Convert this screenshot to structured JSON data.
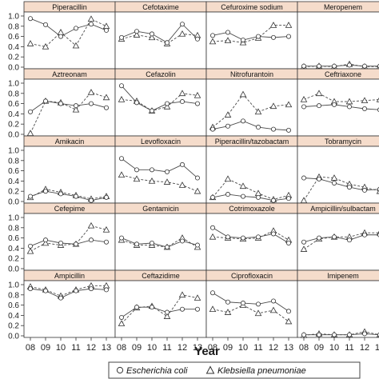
{
  "chart_data": {
    "type": "line",
    "x_tick_labels": [
      "08",
      "09",
      "10",
      "11",
      "12",
      "13"
    ],
    "xlabel": "Year",
    "ylabel": "",
    "ylim": [
      0,
      1.0
    ],
    "y_ticks": [
      "0.0",
      "0.2",
      "0.4",
      "0.6",
      "0.8",
      "1.0"
    ],
    "grid": false,
    "legend_position": "bottom",
    "legend": [
      {
        "name": "Escherichia coli",
        "marker": "circle",
        "line": "solid"
      },
      {
        "name": "Klebsiella pneumoniae",
        "marker": "triangle",
        "line": "dashed"
      }
    ],
    "colors": {
      "strip_bg": "#f5dccb",
      "line": "#4a4a4a",
      "border": "#333333"
    },
    "panels": [
      {
        "title": "Piperacillin",
        "ecoli": [
          0.95,
          0.83,
          0.6,
          0.76,
          0.84,
          0.72
        ],
        "kp": [
          0.46,
          0.4,
          0.68,
          0.42,
          0.94,
          0.8
        ]
      },
      {
        "title": "Cefotaxime",
        "ecoli": [
          0.58,
          0.7,
          0.65,
          0.48,
          0.84,
          0.55
        ],
        "kp": [
          0.55,
          0.63,
          0.58,
          0.46,
          0.65,
          0.62
        ]
      },
      {
        "title": "Cefuroxime sodium",
        "ecoli": [
          0.62,
          0.68,
          0.53,
          0.6,
          0.58,
          0.6
        ],
        "kp": [
          0.5,
          0.52,
          0.48,
          0.57,
          0.82,
          0.82
        ]
      },
      {
        "title": "Meropenem",
        "ecoli": [
          0.02,
          0.02,
          0.02,
          0.04,
          0.02,
          0.02
        ],
        "kp": [
          0.01,
          0.02,
          0.01,
          0.06,
          0.01,
          0.01
        ]
      },
      {
        "title": "Aztreonam",
        "ecoli": [
          0.44,
          0.65,
          0.6,
          0.56,
          0.6,
          0.52
        ],
        "kp": [
          0.02,
          0.65,
          0.62,
          0.48,
          0.82,
          0.72
        ]
      },
      {
        "title": "Cefazolin",
        "ecoli": [
          0.95,
          0.62,
          0.46,
          0.6,
          0.64,
          0.6
        ],
        "kp": [
          0.68,
          0.65,
          0.46,
          0.54,
          0.8,
          0.76
        ]
      },
      {
        "title": "Nitrofurantoin",
        "ecoli": [
          0.1,
          0.16,
          0.26,
          0.14,
          0.1,
          0.08
        ],
        "kp": [
          0.14,
          0.38,
          0.78,
          0.44,
          0.55,
          0.58
        ]
      },
      {
        "title": "Ceftriaxone",
        "ecoli": [
          0.54,
          0.56,
          0.58,
          0.54,
          0.5,
          0.48
        ],
        "kp": [
          0.68,
          0.8,
          0.64,
          0.64,
          0.66,
          0.68
        ]
      },
      {
        "title": "Amikacin",
        "ecoli": [
          0.1,
          0.2,
          0.15,
          0.1,
          0.02,
          0.08
        ],
        "kp": [
          0.08,
          0.24,
          0.18,
          0.12,
          0.05,
          0.1
        ]
      },
      {
        "title": "Levofloxacin",
        "ecoli": [
          0.84,
          0.62,
          0.62,
          0.58,
          0.72,
          0.46
        ],
        "kp": [
          0.52,
          0.44,
          0.4,
          0.38,
          0.32,
          0.2
        ]
      },
      {
        "title": "Piperacillin/tazobactam",
        "ecoli": [
          0.08,
          0.14,
          0.1,
          0.08,
          0.02,
          0.06
        ],
        "kp": [
          0.08,
          0.44,
          0.3,
          0.16,
          0.04,
          0.12
        ]
      },
      {
        "title": "Tobramycin",
        "ecoli": [
          0.46,
          0.44,
          0.36,
          0.28,
          0.22,
          0.24
        ],
        "kp": [
          0.02,
          0.48,
          0.46,
          0.34,
          0.28,
          0.2
        ]
      },
      {
        "title": "Cefepime",
        "ecoli": [
          0.44,
          0.56,
          0.5,
          0.48,
          0.56,
          0.52
        ],
        "kp": [
          0.34,
          0.5,
          0.46,
          0.48,
          0.84,
          0.76
        ]
      },
      {
        "title": "Gentamicin",
        "ecoli": [
          0.6,
          0.48,
          0.5,
          0.42,
          0.54,
          0.46
        ],
        "kp": [
          0.56,
          0.46,
          0.46,
          0.42,
          0.6,
          0.42
        ]
      },
      {
        "title": "Cotrimoxazole",
        "ecoli": [
          0.8,
          0.62,
          0.6,
          0.62,
          0.68,
          0.5
        ],
        "kp": [
          0.62,
          0.6,
          0.58,
          0.6,
          0.74,
          0.56
        ]
      },
      {
        "title": "Ampicillin/sulbactam",
        "ecoli": [
          0.52,
          0.6,
          0.62,
          0.56,
          0.66,
          0.66
        ],
        "kp": [
          0.38,
          0.58,
          0.62,
          0.62,
          0.7,
          0.7
        ]
      },
      {
        "title": "Ampicillin",
        "ecoli": [
          0.92,
          0.88,
          0.74,
          0.88,
          0.92,
          0.9
        ],
        "kp": [
          0.96,
          0.9,
          0.78,
          0.9,
          0.98,
          0.98
        ]
      },
      {
        "title": "Ceftazidime",
        "ecoli": [
          0.36,
          0.56,
          0.56,
          0.46,
          0.52,
          0.52
        ],
        "kp": [
          0.24,
          0.55,
          0.58,
          0.38,
          0.8,
          0.74
        ]
      },
      {
        "title": "Ciprofloxacin",
        "ecoli": [
          0.84,
          0.66,
          0.64,
          0.62,
          0.68,
          0.48
        ],
        "kp": [
          0.52,
          0.46,
          0.6,
          0.44,
          0.5,
          0.28
        ]
      },
      {
        "title": "Imipenem",
        "ecoli": [
          0.02,
          0.02,
          0.02,
          0.02,
          0.04,
          0.02
        ],
        "kp": [
          0.01,
          0.04,
          0.02,
          0.02,
          0.08,
          0.02
        ]
      }
    ]
  }
}
